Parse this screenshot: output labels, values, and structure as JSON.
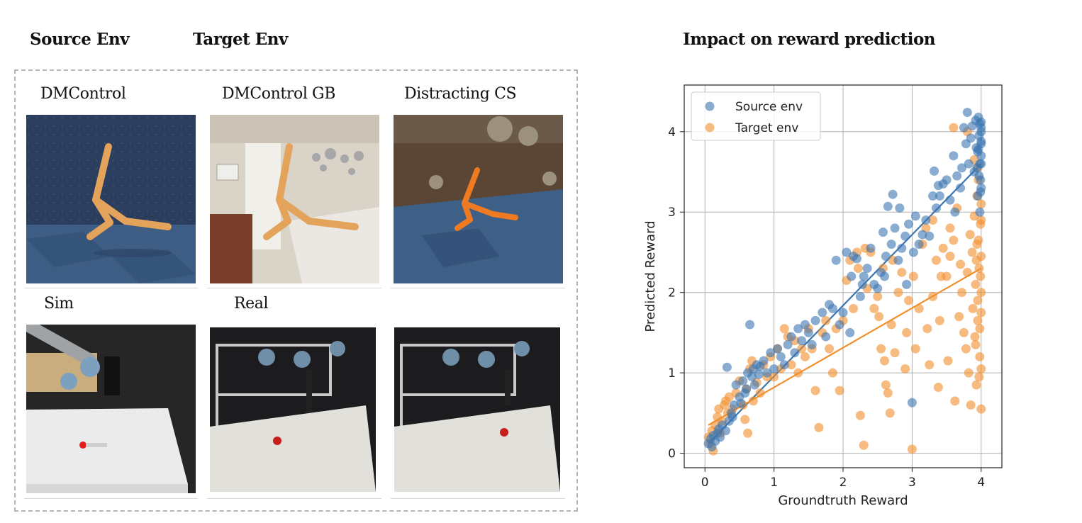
{
  "figure": {
    "left_headings": {
      "source": "Source Env",
      "target": "Target Env"
    },
    "panels": [
      {
        "label": "DMControl"
      },
      {
        "label": "DMControl GB"
      },
      {
        "label": "Distracting CS"
      },
      {
        "label": "Sim"
      },
      {
        "label": "Real"
      }
    ],
    "chart_heading": "Impact on reward prediction"
  },
  "chart_data": {
    "type": "scatter",
    "title": "Impact on reward prediction",
    "xlabel": "Groundtruth Reward",
    "ylabel": "Predicted Reward",
    "xlim": [
      -0.3,
      4.3
    ],
    "ylim": [
      -0.18,
      4.58
    ],
    "xticks": [
      0,
      1,
      2,
      3,
      4
    ],
    "yticks": [
      0,
      1,
      2,
      3,
      4
    ],
    "grid": true,
    "legend_position": "top-left",
    "series": [
      {
        "name": "Source env",
        "color": "#3a75b0",
        "fit": {
          "x": [
            0.05,
            4.0
          ],
          "y": [
            0.12,
            3.6
          ]
        },
        "points": [
          [
            0.05,
            0.12
          ],
          [
            0.08,
            0.18
          ],
          [
            0.1,
            0.08
          ],
          [
            0.12,
            0.22
          ],
          [
            0.15,
            0.15
          ],
          [
            0.18,
            0.25
          ],
          [
            0.2,
            0.3
          ],
          [
            0.22,
            0.2
          ],
          [
            0.25,
            0.35
          ],
          [
            0.3,
            0.28
          ],
          [
            0.32,
            1.07
          ],
          [
            0.35,
            0.4
          ],
          [
            0.38,
            0.5
          ],
          [
            0.4,
            0.45
          ],
          [
            0.42,
            0.6
          ],
          [
            0.45,
            0.85
          ],
          [
            0.5,
            0.7
          ],
          [
            0.52,
            0.62
          ],
          [
            0.55,
            0.9
          ],
          [
            0.58,
            0.75
          ],
          [
            0.6,
            0.8
          ],
          [
            0.62,
            1.0
          ],
          [
            0.65,
            1.6
          ],
          [
            0.68,
            0.95
          ],
          [
            0.7,
            1.05
          ],
          [
            0.72,
            0.85
          ],
          [
            0.75,
            1.1
          ],
          [
            0.78,
            0.98
          ],
          [
            0.8,
            1.08
          ],
          [
            0.85,
            1.15
          ],
          [
            0.9,
            1.0
          ],
          [
            0.95,
            1.25
          ],
          [
            1.0,
            1.05
          ],
          [
            1.05,
            1.3
          ],
          [
            1.1,
            1.2
          ],
          [
            1.15,
            1.1
          ],
          [
            1.2,
            1.35
          ],
          [
            1.25,
            1.45
          ],
          [
            1.3,
            1.25
          ],
          [
            1.35,
            1.55
          ],
          [
            1.4,
            1.4
          ],
          [
            1.45,
            1.6
          ],
          [
            1.5,
            1.5
          ],
          [
            1.55,
            1.35
          ],
          [
            1.6,
            1.65
          ],
          [
            1.7,
            1.75
          ],
          [
            1.75,
            1.45
          ],
          [
            1.8,
            1.85
          ],
          [
            1.85,
            1.8
          ],
          [
            1.9,
            2.4
          ],
          [
            1.95,
            1.6
          ],
          [
            2.0,
            1.75
          ],
          [
            2.05,
            2.5
          ],
          [
            2.1,
            1.5
          ],
          [
            2.12,
            2.2
          ],
          [
            2.15,
            2.45
          ],
          [
            2.2,
            2.42
          ],
          [
            2.25,
            1.95
          ],
          [
            2.28,
            2.1
          ],
          [
            2.3,
            2.2
          ],
          [
            2.35,
            2.3
          ],
          [
            2.4,
            2.55
          ],
          [
            2.45,
            2.1
          ],
          [
            2.5,
            2.05
          ],
          [
            2.55,
            2.25
          ],
          [
            2.58,
            2.75
          ],
          [
            2.6,
            2.2
          ],
          [
            2.62,
            2.45
          ],
          [
            2.65,
            3.07
          ],
          [
            2.7,
            2.6
          ],
          [
            2.72,
            3.22
          ],
          [
            2.75,
            2.8
          ],
          [
            2.8,
            2.4
          ],
          [
            2.82,
            3.05
          ],
          [
            2.85,
            2.55
          ],
          [
            2.9,
            2.7
          ],
          [
            2.92,
            2.1
          ],
          [
            2.95,
            2.85
          ],
          [
            3.0,
            0.63
          ],
          [
            3.02,
            2.5
          ],
          [
            3.05,
            2.95
          ],
          [
            3.1,
            2.6
          ],
          [
            3.15,
            2.72
          ],
          [
            3.2,
            2.9
          ],
          [
            3.25,
            2.7
          ],
          [
            3.3,
            3.2
          ],
          [
            3.32,
            3.51
          ],
          [
            3.35,
            3.05
          ],
          [
            3.38,
            3.33
          ],
          [
            3.4,
            3.2
          ],
          [
            3.45,
            3.35
          ],
          [
            3.5,
            3.4
          ],
          [
            3.55,
            3.15
          ],
          [
            3.6,
            3.7
          ],
          [
            3.62,
            3.0
          ],
          [
            3.65,
            3.45
          ],
          [
            3.7,
            3.3
          ],
          [
            3.72,
            3.55
          ],
          [
            3.75,
            4.05
          ],
          [
            3.78,
            3.85
          ],
          [
            3.8,
            4.24
          ],
          [
            3.82,
            3.6
          ],
          [
            3.85,
            3.92
          ],
          [
            3.87,
            4.07
          ],
          [
            3.9,
            3.5
          ],
          [
            3.92,
            4.14
          ],
          [
            3.93,
            3.8
          ],
          [
            3.95,
            3.75
          ],
          [
            3.96,
            4.18
          ],
          [
            3.97,
            3.95
          ],
          [
            3.98,
            4.1
          ],
          [
            3.99,
            3.25
          ],
          [
            4.0,
            3.6
          ],
          [
            4.0,
            3.88
          ],
          [
            4.0,
            4.0
          ],
          [
            4.0,
            4.12
          ],
          [
            3.98,
            3.6
          ],
          [
            3.97,
            3.45
          ],
          [
            3.96,
            3.78
          ],
          [
            4.0,
            3.7
          ],
          [
            4.0,
            4.05
          ],
          [
            3.95,
            3.2
          ],
          [
            3.99,
            3.4
          ],
          [
            4.0,
            3.3
          ],
          [
            3.94,
            3.55
          ],
          [
            3.98,
            3.0
          ],
          [
            4.0,
            3.85
          ]
        ]
      },
      {
        "name": "Target env",
        "color": "#f28e2b",
        "fit": {
          "x": [
            0.05,
            4.0
          ],
          "y": [
            0.35,
            2.3
          ]
        },
        "points": [
          [
            0.05,
            0.2
          ],
          [
            0.08,
            0.12
          ],
          [
            0.1,
            0.28
          ],
          [
            0.12,
            0.03
          ],
          [
            0.15,
            0.35
          ],
          [
            0.18,
            0.45
          ],
          [
            0.2,
            0.55
          ],
          [
            0.22,
            0.25
          ],
          [
            0.25,
            0.4
          ],
          [
            0.28,
            0.6
          ],
          [
            0.3,
            0.65
          ],
          [
            0.33,
            0.5
          ],
          [
            0.35,
            0.7
          ],
          [
            0.4,
            0.55
          ],
          [
            0.45,
            0.75
          ],
          [
            0.5,
            0.9
          ],
          [
            0.55,
            0.6
          ],
          [
            0.58,
            0.42
          ],
          [
            0.6,
            0.8
          ],
          [
            0.62,
            0.25
          ],
          [
            0.65,
            1.05
          ],
          [
            0.68,
            1.15
          ],
          [
            0.7,
            0.65
          ],
          [
            0.75,
            0.88
          ],
          [
            0.8,
            0.75
          ],
          [
            0.85,
            1.1
          ],
          [
            0.9,
            0.95
          ],
          [
            0.95,
            1.2
          ],
          [
            1.0,
            0.95
          ],
          [
            1.05,
            1.3
          ],
          [
            1.1,
            1.05
          ],
          [
            1.15,
            1.55
          ],
          [
            1.2,
            1.45
          ],
          [
            1.25,
            1.1
          ],
          [
            1.3,
            1.4
          ],
          [
            1.35,
            1.0
          ],
          [
            1.4,
            1.3
          ],
          [
            1.45,
            1.2
          ],
          [
            1.5,
            1.55
          ],
          [
            1.55,
            1.3
          ],
          [
            1.6,
            0.78
          ],
          [
            1.65,
            0.32
          ],
          [
            1.7,
            1.5
          ],
          [
            1.75,
            1.65
          ],
          [
            1.8,
            1.3
          ],
          [
            1.85,
            1.0
          ],
          [
            1.9,
            1.55
          ],
          [
            1.95,
            0.78
          ],
          [
            2.0,
            1.65
          ],
          [
            2.05,
            2.15
          ],
          [
            2.1,
            2.4
          ],
          [
            2.15,
            1.8
          ],
          [
            2.2,
            2.5
          ],
          [
            2.22,
            2.3
          ],
          [
            2.25,
            0.47
          ],
          [
            2.3,
            0.1
          ],
          [
            2.32,
            2.55
          ],
          [
            2.35,
            2.05
          ],
          [
            2.4,
            2.5
          ],
          [
            2.45,
            1.8
          ],
          [
            2.5,
            1.95
          ],
          [
            2.52,
            1.7
          ],
          [
            2.55,
            1.3
          ],
          [
            2.58,
            2.3
          ],
          [
            2.6,
            1.15
          ],
          [
            2.62,
            0.85
          ],
          [
            2.65,
            0.75
          ],
          [
            2.68,
            0.5
          ],
          [
            2.7,
            1.6
          ],
          [
            2.72,
            2.4
          ],
          [
            2.75,
            1.25
          ],
          [
            2.8,
            2.0
          ],
          [
            2.85,
            2.25
          ],
          [
            2.9,
            1.05
          ],
          [
            2.92,
            1.5
          ],
          [
            2.95,
            1.9
          ],
          [
            3.0,
            0.05
          ],
          [
            3.02,
            2.2
          ],
          [
            3.05,
            1.3
          ],
          [
            3.1,
            1.8
          ],
          [
            3.15,
            2.6
          ],
          [
            3.2,
            2.8
          ],
          [
            3.22,
            1.55
          ],
          [
            3.25,
            1.1
          ],
          [
            3.3,
            1.95
          ],
          [
            3.35,
            2.4
          ],
          [
            3.38,
            0.82
          ],
          [
            3.4,
            1.65
          ],
          [
            3.45,
            2.55
          ],
          [
            3.5,
            2.2
          ],
          [
            3.52,
            1.15
          ],
          [
            3.55,
            2.8
          ],
          [
            3.6,
            2.65
          ],
          [
            3.62,
            0.65
          ],
          [
            3.65,
            3.05
          ],
          [
            3.68,
            1.7
          ],
          [
            3.7,
            2.35
          ],
          [
            3.72,
            2.0
          ],
          [
            3.75,
            1.5
          ],
          [
            3.78,
            1.3
          ],
          [
            3.8,
            2.25
          ],
          [
            3.82,
            1.0
          ],
          [
            3.84,
            2.72
          ],
          [
            3.85,
            0.6
          ],
          [
            3.87,
            2.5
          ],
          [
            3.88,
            1.8
          ],
          [
            3.9,
            2.95
          ],
          [
            3.91,
            1.45
          ],
          [
            3.92,
            2.1
          ],
          [
            3.93,
            0.85
          ],
          [
            3.94,
            2.6
          ],
          [
            3.95,
            1.65
          ],
          [
            3.96,
            3.4
          ],
          [
            3.97,
            2.3
          ],
          [
            3.98,
            1.2
          ],
          [
            3.99,
            2.85
          ],
          [
            4.0,
            0.55
          ],
          [
            4.0,
            1.05
          ],
          [
            4.0,
            1.75
          ],
          [
            4.0,
            2.0
          ],
          [
            4.0,
            2.45
          ],
          [
            4.0,
            2.9
          ],
          [
            4.0,
            3.1
          ],
          [
            3.99,
            2.2
          ],
          [
            3.98,
            1.55
          ],
          [
            3.97,
            0.95
          ],
          [
            3.96,
            2.65
          ],
          [
            3.95,
            1.9
          ],
          [
            3.94,
            3.2
          ],
          [
            3.93,
            2.4
          ],
          [
            3.92,
            1.35
          ],
          [
            3.6,
            4.05
          ],
          [
            3.42,
            2.2
          ],
          [
            3.3,
            2.9
          ],
          [
            3.55,
            2.45
          ],
          [
            3.95,
            3.55
          ],
          [
            3.9,
            3.65
          ],
          [
            3.8,
            4.0
          ]
        ]
      }
    ]
  }
}
